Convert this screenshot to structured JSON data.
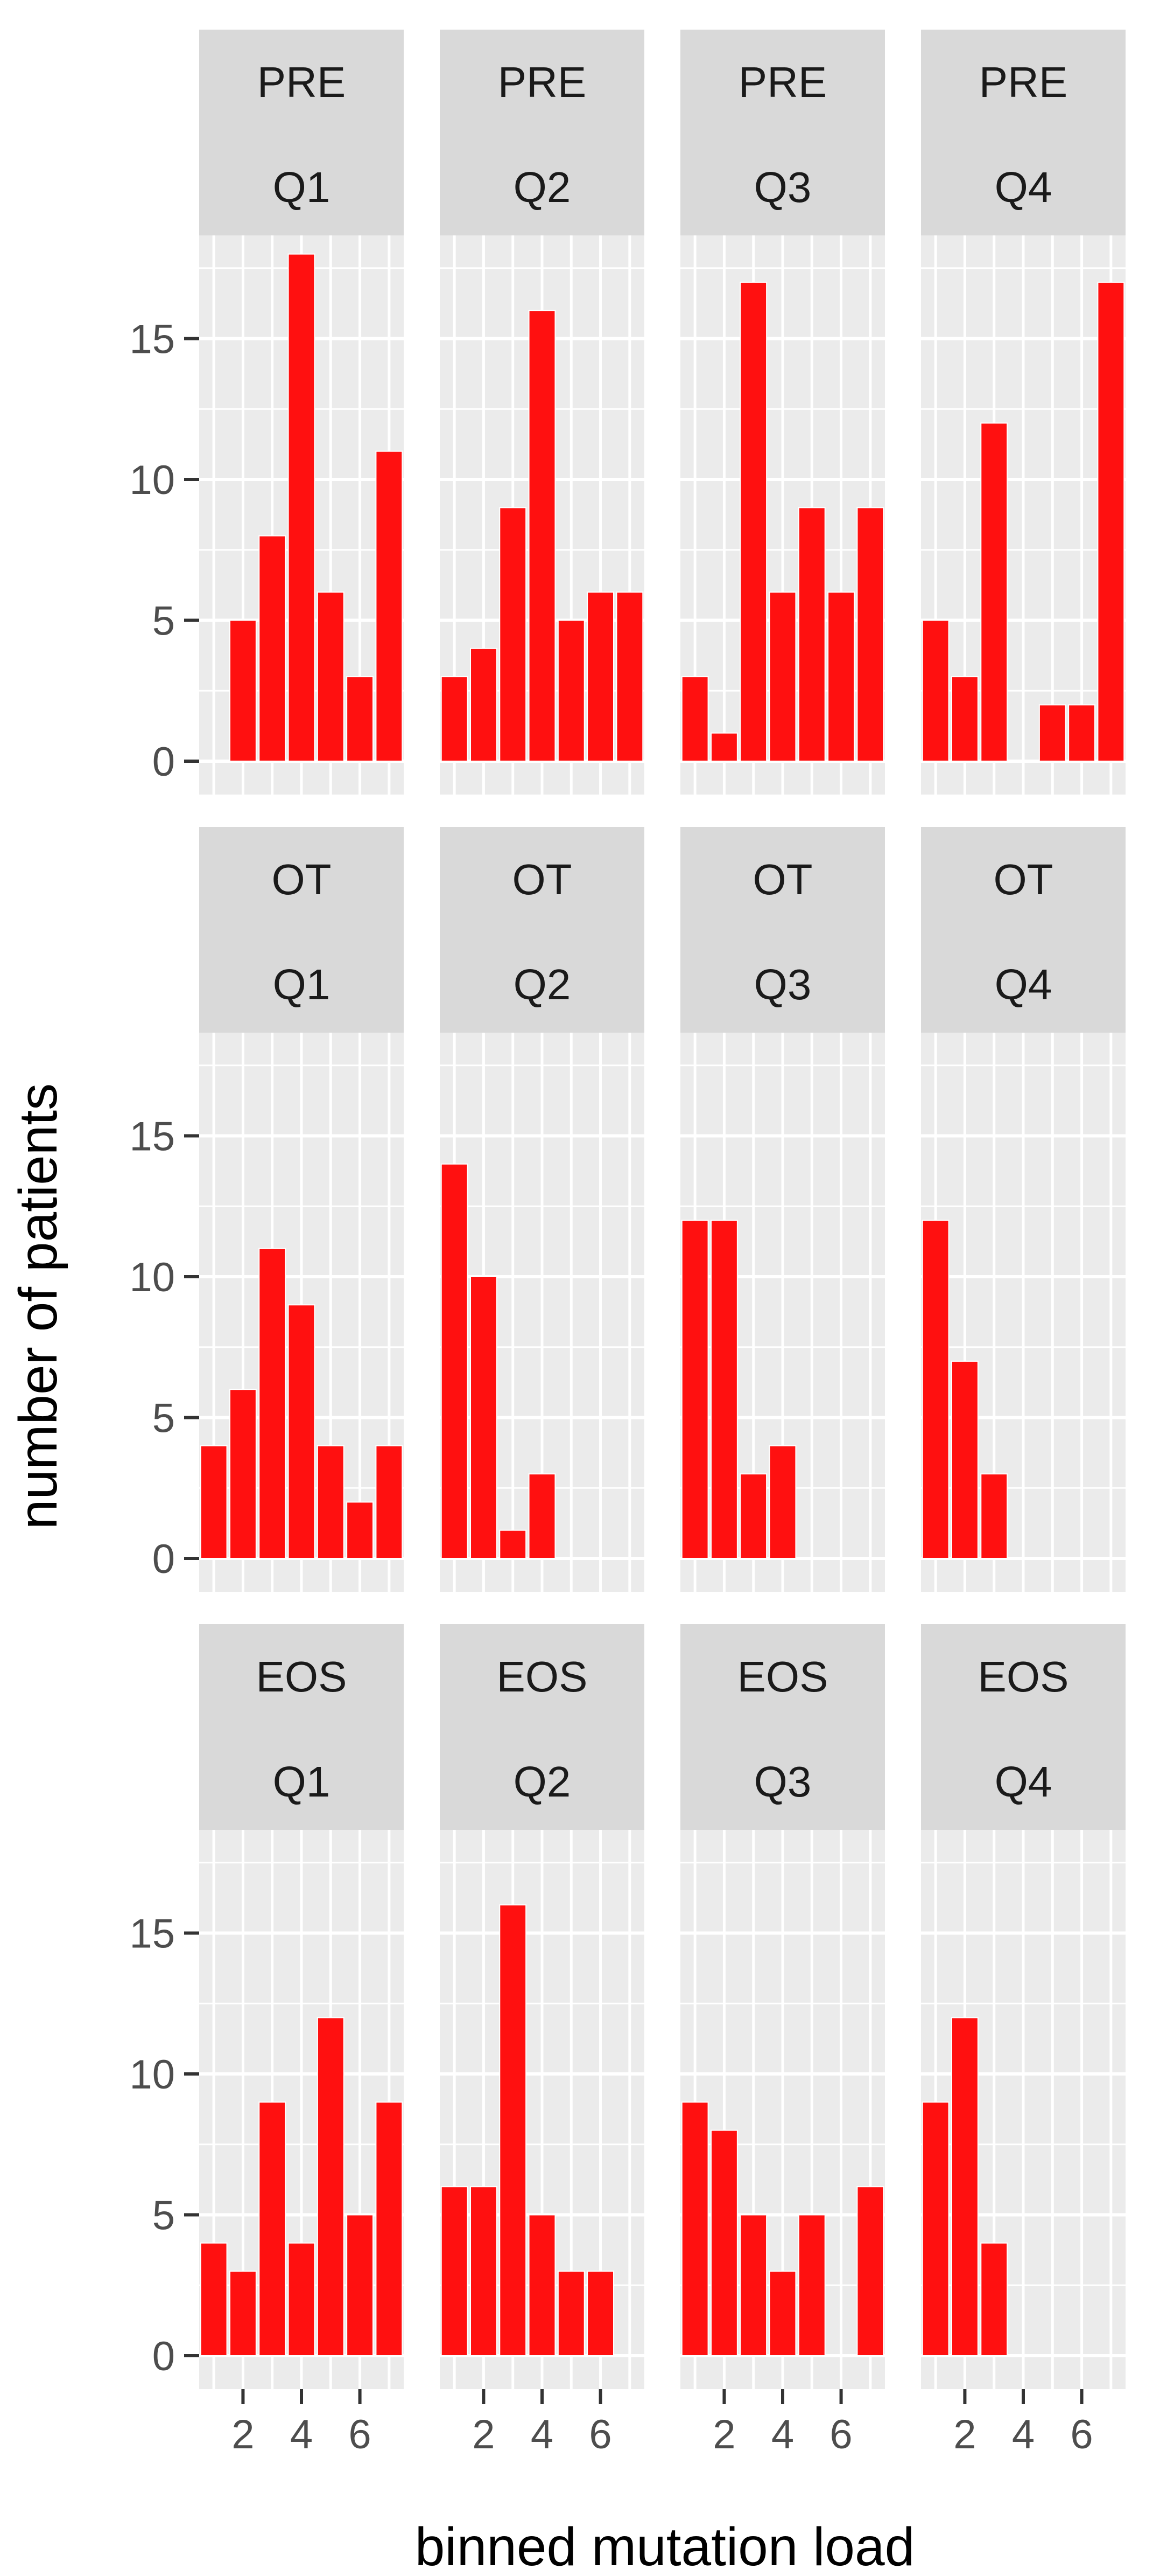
{
  "chart_data": {
    "type": "bar",
    "layout": "facet-grid",
    "xlabel": "binned mutation load",
    "ylabel": "number of patients",
    "x_ticks": [
      2,
      4,
      6
    ],
    "y_ticks": [
      0,
      5,
      10,
      15
    ],
    "xlim": [
      0.5,
      7.5
    ],
    "ylim": [
      0,
      18
    ],
    "bar_color": "#ff1010",
    "panel_background": "#ebebeb",
    "strip_background": "#d9d9d9",
    "grid": true,
    "rows": [
      "PRE",
      "OT",
      "EOS"
    ],
    "cols": [
      "Q1",
      "Q2",
      "Q3",
      "Q4"
    ],
    "panels": [
      {
        "row": "PRE",
        "col": "Q1",
        "bins": [
          1,
          2,
          3,
          4,
          5,
          6,
          7
        ],
        "values": [
          0,
          5,
          8,
          18,
          6,
          3,
          11
        ]
      },
      {
        "row": "PRE",
        "col": "Q2",
        "bins": [
          1,
          2,
          3,
          4,
          5,
          6,
          7
        ],
        "values": [
          3,
          4,
          9,
          16,
          5,
          6,
          6
        ]
      },
      {
        "row": "PRE",
        "col": "Q3",
        "bins": [
          1,
          2,
          3,
          4,
          5,
          6,
          7
        ],
        "values": [
          3,
          1,
          17,
          6,
          9,
          6,
          9
        ]
      },
      {
        "row": "PRE",
        "col": "Q4",
        "bins": [
          1,
          2,
          3,
          4,
          5,
          6,
          7
        ],
        "values": [
          5,
          3,
          12,
          0,
          2,
          2,
          17
        ]
      },
      {
        "row": "OT",
        "col": "Q1",
        "bins": [
          1,
          2,
          3,
          4,
          5,
          6,
          7
        ],
        "values": [
          4,
          6,
          11,
          9,
          4,
          2,
          4
        ]
      },
      {
        "row": "OT",
        "col": "Q2",
        "bins": [
          1,
          2,
          3,
          4,
          5,
          6,
          7
        ],
        "values": [
          14,
          10,
          1,
          3,
          0,
          0,
          0
        ]
      },
      {
        "row": "OT",
        "col": "Q3",
        "bins": [
          1,
          2,
          3,
          4,
          5,
          6,
          7
        ],
        "values": [
          12,
          12,
          3,
          4,
          0,
          0,
          0
        ]
      },
      {
        "row": "OT",
        "col": "Q4",
        "bins": [
          1,
          2,
          3,
          4,
          5,
          6,
          7
        ],
        "values": [
          12,
          7,
          3,
          0,
          0,
          0,
          0
        ]
      },
      {
        "row": "EOS",
        "col": "Q1",
        "bins": [
          1,
          2,
          3,
          4,
          5,
          6,
          7
        ],
        "values": [
          4,
          3,
          9,
          4,
          12,
          5,
          9
        ]
      },
      {
        "row": "EOS",
        "col": "Q2",
        "bins": [
          1,
          2,
          3,
          4,
          5,
          6,
          7
        ],
        "values": [
          6,
          6,
          16,
          5,
          3,
          3,
          0
        ]
      },
      {
        "row": "EOS",
        "col": "Q3",
        "bins": [
          1,
          2,
          3,
          4,
          5,
          6,
          7
        ],
        "values": [
          9,
          8,
          5,
          3,
          5,
          0,
          6
        ]
      },
      {
        "row": "EOS",
        "col": "Q4",
        "bins": [
          1,
          2,
          3,
          4,
          5,
          6,
          7
        ],
        "values": [
          9,
          12,
          4,
          0,
          0,
          0,
          0
        ]
      }
    ]
  }
}
